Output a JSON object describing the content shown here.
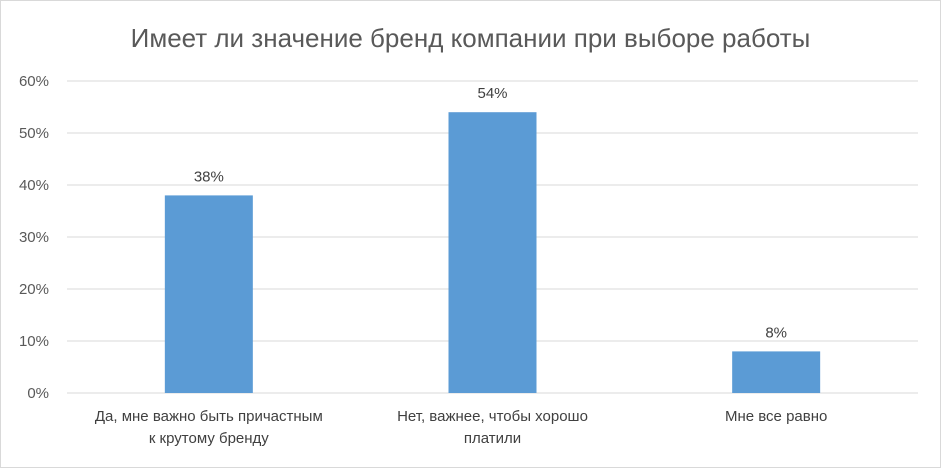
{
  "chart_data": {
    "type": "bar",
    "title": "Имеет ли значение бренд компании при выборе работы",
    "categories": [
      [
        "Да, мне важно быть причастным",
        "к крутому бренду"
      ],
      [
        "Нет, важнее, чтобы хорошо",
        "платили"
      ],
      [
        "Мне все равно"
      ]
    ],
    "values": [
      38,
      54,
      8
    ],
    "data_labels": [
      "38%",
      "54%",
      "8%"
    ],
    "y_ticks": [
      "0%",
      "10%",
      "20%",
      "30%",
      "40%",
      "50%",
      "60%"
    ],
    "ylim": [
      0,
      60
    ],
    "grid": true,
    "bar_color": "#5b9bd5",
    "grid_color": "#d9d9d9"
  }
}
